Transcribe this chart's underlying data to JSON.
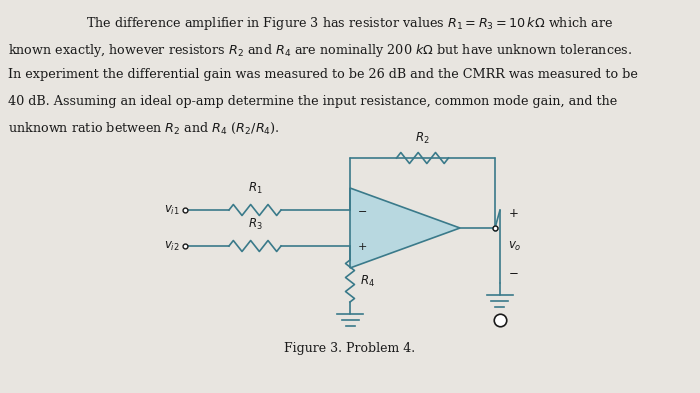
{
  "background_color": "#e8e5e0",
  "circuit_color": "#3a7a8a",
  "op_amp_fill": "#b8d8e0",
  "text_color": "#1a1a1a",
  "font_size_body": 9.2,
  "font_size_caption": 9.0,
  "font_size_labels": 8.5,
  "figure_caption": "Figure 3. Problem 4.",
  "text_lines": [
    "The difference amplifier in Figure 3 has resistor values $R_1 = R_3 = 10\\,k\\Omega$ which are",
    "known exactly, however resistors $R_2$ and $R_4$ are nominally 200 $k\\Omega$ but have unknown tolerances.",
    "In experiment the differential gain was measured to be 26 dB and the CMRR was measured to be",
    "40 dB. Assuming an ideal op-amp determine the input resistance, common mode gain, and the",
    "unknown ratio between $R_2$ and $R_4$ ($R_2/R_4$)."
  ]
}
